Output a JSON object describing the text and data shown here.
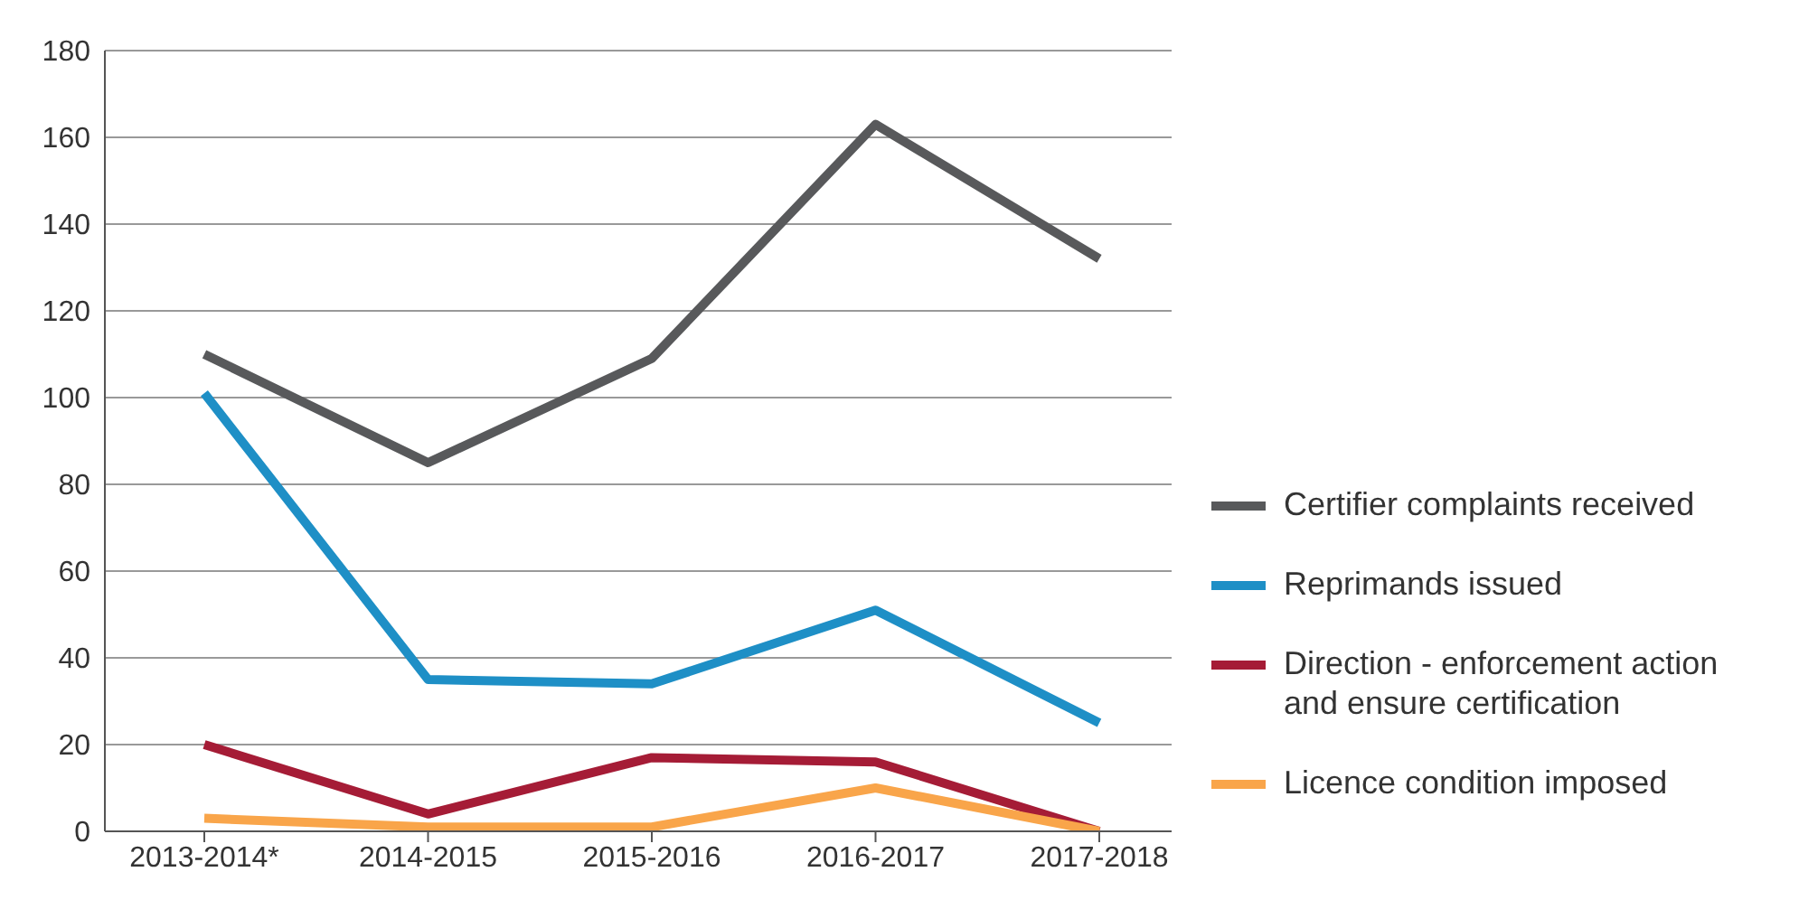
{
  "chart_data": {
    "type": "line",
    "categories": [
      "2013-2014*",
      "2014-2015",
      "2015-2016",
      "2016-2017",
      "2017-2018"
    ],
    "series": [
      {
        "name": "Certifier complaints received",
        "color": "#58595b",
        "values": [
          110,
          85,
          109,
          163,
          132
        ]
      },
      {
        "name": "Reprimands issued",
        "color": "#1e8fc6",
        "values": [
          101,
          35,
          34,
          51,
          25
        ]
      },
      {
        "name": "Direction - enforcement action and ensure certification",
        "color": "#a51c36",
        "values": [
          20,
          4,
          17,
          16,
          0
        ]
      },
      {
        "name": "Licence condition imposed",
        "color": "#f9a54a",
        "values": [
          3,
          1,
          1,
          10,
          0
        ]
      }
    ],
    "ylim": [
      0,
      180
    ],
    "yticks": [
      0,
      20,
      40,
      60,
      80,
      100,
      120,
      140,
      160,
      180
    ],
    "grid": "y",
    "legend": "right",
    "marker": "none",
    "line_style": "solid"
  }
}
